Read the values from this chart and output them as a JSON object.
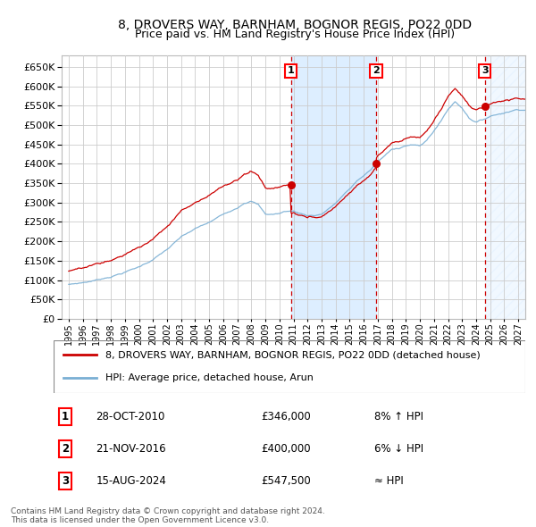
{
  "title": "8, DROVERS WAY, BARNHAM, BOGNOR REGIS, PO22 0DD",
  "subtitle": "Price paid vs. HM Land Registry's House Price Index (HPI)",
  "legend_line1": "8, DROVERS WAY, BARNHAM, BOGNOR REGIS, PO22 0DD (detached house)",
  "legend_line2": "HPI: Average price, detached house, Arun",
  "footer_line1": "Contains HM Land Registry data © Crown copyright and database right 2024.",
  "footer_line2": "This data is licensed under the Open Government Licence v3.0.",
  "transactions": [
    {
      "num": "1",
      "date": "28-OCT-2010",
      "price": "£346,000",
      "hpi": "8% ↑ HPI",
      "x": 2010.82
    },
    {
      "num": "2",
      "date": "21-NOV-2016",
      "price": "£400,000",
      "hpi": "6% ↓ HPI",
      "x": 2016.89
    },
    {
      "num": "3",
      "date": "15-AUG-2024",
      "price": "£547,500",
      "hpi": "≈ HPI",
      "x": 2024.62
    }
  ],
  "hpi_color": "#7aafd4",
  "price_color": "#cc0000",
  "dot_color": "#cc0000",
  "vline_color": "#cc0000",
  "shade_color": "#ddeeff",
  "ylim": [
    0,
    680000
  ],
  "yticks": [
    0,
    50000,
    100000,
    150000,
    200000,
    250000,
    300000,
    350000,
    400000,
    450000,
    500000,
    550000,
    600000,
    650000
  ],
  "xlim_start": 1994.5,
  "xlim_end": 2027.5
}
